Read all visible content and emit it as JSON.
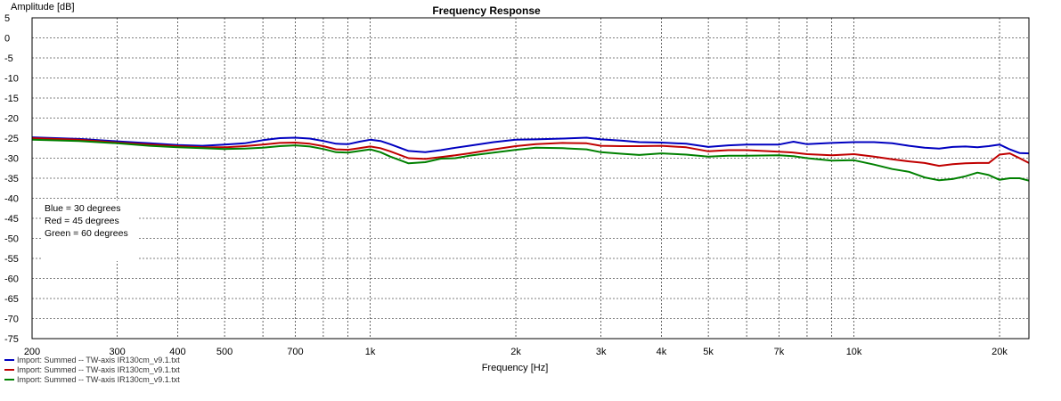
{
  "chart_data": {
    "type": "line",
    "title": "Frequency Response",
    "ylabel": "Amplitude [dB]",
    "xlabel": "Frequency [Hz]",
    "x_scale": "log",
    "xlim": [
      200,
      23000
    ],
    "ylim": [
      -75,
      5
    ],
    "grid": true,
    "y_ticks": [
      "5",
      "0",
      "-5",
      "-10",
      "-15",
      "-20",
      "-25",
      "-30",
      "-35",
      "-40",
      "-45",
      "-50",
      "-55",
      "-60",
      "-65",
      "-70",
      "-75"
    ],
    "y_tick_values": [
      5,
      0,
      -5,
      -10,
      -15,
      -20,
      -25,
      -30,
      -35,
      -40,
      -45,
      -50,
      -55,
      -60,
      -65,
      -70,
      -75
    ],
    "x_ticks": [
      "200",
      "300",
      "400",
      "500",
      "700",
      "1k",
      "2k",
      "3k",
      "4k",
      "5k",
      "7k",
      "10k",
      "20k"
    ],
    "x_tick_values": [
      200,
      300,
      400,
      500,
      700,
      1000,
      2000,
      3000,
      4000,
      5000,
      7000,
      10000,
      20000
    ],
    "legend_box": {
      "position": "left",
      "lines": [
        "Blue = 30 degrees",
        "Red = 45 degrees",
        "Green = 60 degrees"
      ]
    },
    "footer_legend": [
      "Import: Summed -- TW-axis IR130cm_v9.1.txt",
      "Import: Summed -- TW-axis IR130cm_v9.1.txt",
      "Import: Summed -- TW-axis IR130cm_v9.1.txt"
    ],
    "series": [
      {
        "color": "#0000c0",
        "x": [
          200,
          250,
          300,
          350,
          400,
          450,
          500,
          550,
          600,
          650,
          700,
          750,
          800,
          850,
          900,
          950,
          1000,
          1050,
          1100,
          1200,
          1300,
          1400,
          1500,
          1600,
          1800,
          2000,
          2200,
          2500,
          2800,
          3000,
          3300,
          3600,
          4000,
          4500,
          5000,
          5500,
          6000,
          7000,
          7500,
          8000,
          9000,
          10000,
          11000,
          12000,
          13000,
          14000,
          15000,
          16000,
          17000,
          18000,
          19000,
          20000,
          21000,
          22000,
          23000
        ],
        "y": [
          -24.8,
          -25.2,
          -25.8,
          -26.3,
          -26.7,
          -26.9,
          -26.6,
          -26.3,
          -25.5,
          -25.0,
          -24.9,
          -25.1,
          -25.7,
          -26.4,
          -26.5,
          -25.9,
          -25.4,
          -25.7,
          -26.5,
          -28.2,
          -28.5,
          -28.0,
          -27.4,
          -26.9,
          -26.0,
          -25.4,
          -25.3,
          -25.1,
          -24.9,
          -25.3,
          -25.6,
          -26.0,
          -26.1,
          -26.4,
          -27.2,
          -26.8,
          -26.6,
          -26.6,
          -25.9,
          -26.5,
          -26.2,
          -26.0,
          -26.0,
          -26.3,
          -26.9,
          -27.4,
          -27.6,
          -27.2,
          -27.1,
          -27.3,
          -27.0,
          -26.6,
          -27.8,
          -28.7,
          -28.8
        ]
      },
      {
        "color": "#c00000",
        "x": [
          200,
          250,
          300,
          350,
          400,
          450,
          500,
          550,
          600,
          650,
          700,
          750,
          800,
          850,
          900,
          950,
          1000,
          1050,
          1100,
          1200,
          1300,
          1400,
          1500,
          1600,
          1800,
          2000,
          2200,
          2500,
          2800,
          3000,
          3300,
          3600,
          4000,
          4500,
          5000,
          5500,
          6000,
          7000,
          7500,
          8000,
          9000,
          10000,
          11000,
          12000,
          13000,
          14000,
          15000,
          16000,
          17000,
          18000,
          19000,
          20000,
          21000,
          22000,
          23000
        ],
        "y": [
          -25.0,
          -25.4,
          -26.1,
          -26.6,
          -27.0,
          -27.3,
          -27.3,
          -27.0,
          -26.6,
          -26.2,
          -26.1,
          -26.4,
          -27.0,
          -27.8,
          -27.9,
          -27.5,
          -27.1,
          -27.5,
          -28.3,
          -30.0,
          -30.2,
          -29.7,
          -29.3,
          -28.8,
          -27.8,
          -27.0,
          -26.5,
          -26.2,
          -26.3,
          -26.9,
          -27.0,
          -27.0,
          -26.9,
          -27.3,
          -28.3,
          -28.0,
          -28.0,
          -28.4,
          -28.6,
          -29.0,
          -29.3,
          -29.0,
          -29.6,
          -30.3,
          -30.8,
          -31.2,
          -31.9,
          -31.5,
          -31.3,
          -31.2,
          -31.2,
          -29.1,
          -28.8,
          -30.0,
          -31.2
        ]
      },
      {
        "color": "#008000",
        "x": [
          200,
          250,
          300,
          350,
          400,
          450,
          500,
          550,
          600,
          650,
          700,
          750,
          800,
          850,
          900,
          950,
          1000,
          1050,
          1100,
          1200,
          1300,
          1400,
          1500,
          1600,
          1800,
          2000,
          2200,
          2500,
          2800,
          3000,
          3300,
          3600,
          4000,
          4500,
          5000,
          5500,
          6000,
          7000,
          7500,
          8000,
          9000,
          10000,
          11000,
          12000,
          13000,
          14000,
          15000,
          16000,
          17000,
          18000,
          19000,
          20000,
          21000,
          22000,
          23000
        ],
        "y": [
          -25.4,
          -25.7,
          -26.3,
          -26.9,
          -27.3,
          -27.5,
          -27.7,
          -27.6,
          -27.4,
          -27.0,
          -26.8,
          -27.1,
          -27.7,
          -28.5,
          -28.6,
          -28.2,
          -27.8,
          -28.5,
          -29.6,
          -31.3,
          -31.0,
          -30.1,
          -30.0,
          -29.4,
          -28.6,
          -27.9,
          -27.4,
          -27.5,
          -27.8,
          -28.5,
          -28.9,
          -29.2,
          -28.8,
          -29.1,
          -29.6,
          -29.4,
          -29.4,
          -29.3,
          -29.5,
          -30.0,
          -30.6,
          -30.5,
          -31.6,
          -32.7,
          -33.4,
          -34.8,
          -35.5,
          -35.2,
          -34.5,
          -33.6,
          -34.2,
          -35.4,
          -35.0,
          -35.0,
          -35.6
        ]
      }
    ]
  }
}
